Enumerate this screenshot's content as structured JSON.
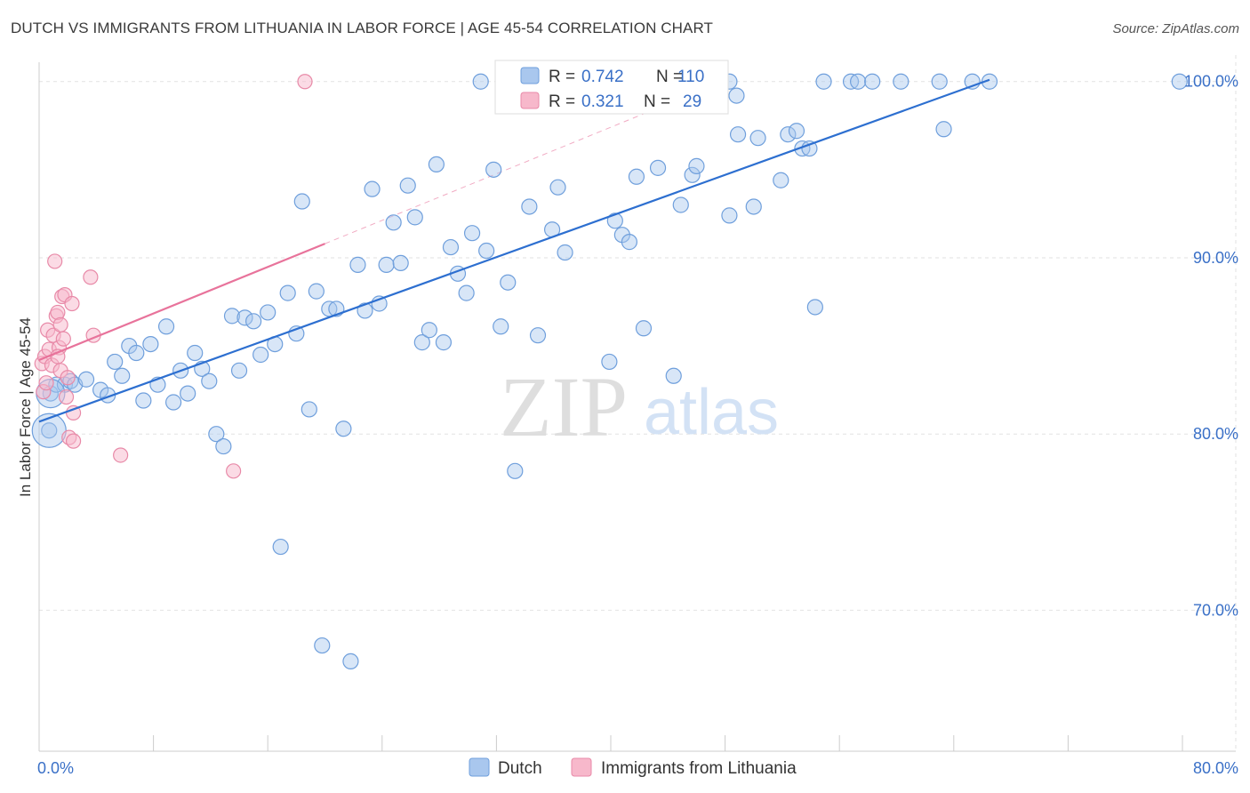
{
  "title": "DUTCH VS IMMIGRANTS FROM LITHUANIA IN LABOR FORCE | AGE 45-54 CORRELATION CHART",
  "source": "Source: ZipAtlas.com",
  "watermark": {
    "zip": "ZIP",
    "atlas": "atlas"
  },
  "colors": {
    "dutch_fill": "#a9c7ee",
    "dutch_stroke": "#6f9fdc",
    "dutch_line": "#2d6fd0",
    "lith_fill": "#f7b8cb",
    "lith_stroke": "#e88aa8",
    "lith_line": "#e8739b",
    "tick_text": "#3a70c7",
    "grid": "#e2e2e2"
  },
  "chart_data": {
    "type": "scatter",
    "title": "DUTCH VS IMMIGRANTS FROM LITHUANIA IN LABOR FORCE | AGE 45-54 CORRELATION CHART",
    "xlabel": "",
    "ylabel": "In Labor Force | Age 45-54",
    "xlim": [
      0,
      80
    ],
    "ylim": [
      62,
      101.5
    ],
    "x_tick_labels": [
      "0.0%",
      "80.0%"
    ],
    "y_ticks": [
      70,
      80,
      90,
      100
    ],
    "y_tick_labels": [
      "70.0%",
      "80.0%",
      "90.0%",
      "100.0%"
    ],
    "legend": {
      "position": "top-center",
      "rows": [
        {
          "r_label": "R =",
          "r_value": "0.742",
          "n_label": "N =",
          "n_value": "110"
        },
        {
          "r_label": "R =",
          "r_value": "0.321",
          "n_label": "N =",
          "n_value": "29"
        }
      ]
    },
    "series": [
      {
        "name": "Dutch",
        "trend": {
          "x": [
            0,
            66.5
          ],
          "y": [
            80.7,
            100.1
          ]
        },
        "points": [
          [
            0.7,
            80.2
          ],
          [
            0.8,
            82.3
          ],
          [
            1.2,
            82.8
          ],
          [
            1.8,
            82.8
          ],
          [
            2.2,
            83.0
          ],
          [
            2.5,
            82.8
          ],
          [
            3.3,
            83.1
          ],
          [
            4.3,
            82.5
          ],
          [
            4.8,
            82.2
          ],
          [
            5.3,
            84.1
          ],
          [
            5.8,
            83.3
          ],
          [
            6.3,
            85.0
          ],
          [
            6.8,
            84.6
          ],
          [
            7.3,
            81.9
          ],
          [
            7.8,
            85.1
          ],
          [
            8.3,
            82.8
          ],
          [
            8.9,
            86.1
          ],
          [
            9.4,
            81.8
          ],
          [
            9.9,
            83.6
          ],
          [
            10.4,
            82.3
          ],
          [
            10.9,
            84.6
          ],
          [
            11.4,
            83.7
          ],
          [
            11.9,
            83.0
          ],
          [
            12.4,
            80.0
          ],
          [
            12.9,
            79.3
          ],
          [
            13.5,
            86.7
          ],
          [
            14.0,
            83.6
          ],
          [
            14.4,
            86.6
          ],
          [
            15.0,
            86.4
          ],
          [
            15.5,
            84.5
          ],
          [
            16.0,
            86.9
          ],
          [
            16.5,
            85.1
          ],
          [
            16.9,
            73.6
          ],
          [
            17.4,
            88.0
          ],
          [
            18.0,
            85.7
          ],
          [
            18.4,
            93.2
          ],
          [
            18.9,
            81.4
          ],
          [
            19.4,
            88.1
          ],
          [
            19.8,
            68.0
          ],
          [
            20.3,
            87.1
          ],
          [
            20.8,
            87.1
          ],
          [
            21.3,
            80.3
          ],
          [
            21.8,
            67.1
          ],
          [
            22.3,
            89.6
          ],
          [
            22.8,
            87.0
          ],
          [
            23.3,
            93.9
          ],
          [
            23.8,
            87.4
          ],
          [
            24.3,
            89.6
          ],
          [
            24.8,
            92.0
          ],
          [
            25.3,
            89.7
          ],
          [
            25.8,
            94.1
          ],
          [
            26.3,
            92.3
          ],
          [
            26.8,
            85.2
          ],
          [
            27.3,
            85.9
          ],
          [
            27.8,
            95.3
          ],
          [
            28.3,
            85.2
          ],
          [
            28.8,
            90.6
          ],
          [
            29.3,
            89.1
          ],
          [
            29.9,
            88.0
          ],
          [
            30.3,
            91.4
          ],
          [
            30.9,
            100.0
          ],
          [
            31.3,
            90.4
          ],
          [
            31.8,
            95.0
          ],
          [
            32.3,
            86.1
          ],
          [
            32.8,
            88.6
          ],
          [
            33.3,
            77.9
          ],
          [
            34.3,
            92.9
          ],
          [
            34.9,
            85.6
          ],
          [
            35.3,
            100.0
          ],
          [
            35.9,
            91.6
          ],
          [
            36.3,
            94.0
          ],
          [
            36.8,
            90.3
          ],
          [
            37.4,
            100.0
          ],
          [
            38.3,
            100.0
          ],
          [
            39.3,
            100.0
          ],
          [
            39.9,
            84.1
          ],
          [
            40.3,
            92.1
          ],
          [
            40.8,
            91.3
          ],
          [
            41.3,
            90.9
          ],
          [
            41.8,
            94.6
          ],
          [
            42.3,
            86.0
          ],
          [
            43.3,
            95.1
          ],
          [
            44.4,
            83.3
          ],
          [
            44.9,
            93.0
          ],
          [
            45.7,
            94.7
          ],
          [
            46.0,
            95.2
          ],
          [
            46.6,
            99.2
          ],
          [
            48.3,
            100.0
          ],
          [
            48.8,
            99.2
          ],
          [
            48.3,
            92.4
          ],
          [
            48.9,
            97.0
          ],
          [
            50.0,
            92.9
          ],
          [
            50.3,
            96.8
          ],
          [
            51.9,
            94.4
          ],
          [
            52.4,
            97.0
          ],
          [
            53.0,
            97.2
          ],
          [
            53.4,
            96.2
          ],
          [
            53.9,
            96.2
          ],
          [
            54.3,
            87.2
          ],
          [
            54.9,
            100.0
          ],
          [
            56.8,
            100.0
          ],
          [
            57.3,
            100.0
          ],
          [
            58.3,
            100.0
          ],
          [
            60.3,
            100.0
          ],
          [
            63.0,
            100.0
          ],
          [
            63.3,
            97.3
          ],
          [
            65.3,
            100.0
          ],
          [
            66.5,
            100.0
          ],
          [
            79.8,
            100.0
          ]
        ]
      },
      {
        "name": "Immigrants from Lithuania",
        "trend": {
          "x": [
            0,
            20
          ],
          "y": [
            84.2,
            90.8
          ],
          "extension": {
            "x": [
              20,
              43
            ],
            "y": [
              90.8,
              98.4
            ]
          }
        },
        "points": [
          [
            0.2,
            84.0
          ],
          [
            0.3,
            82.4
          ],
          [
            0.4,
            84.4
          ],
          [
            0.6,
            85.9
          ],
          [
            0.7,
            84.8
          ],
          [
            0.9,
            83.9
          ],
          [
            1.0,
            85.6
          ],
          [
            1.1,
            89.8
          ],
          [
            1.2,
            86.7
          ],
          [
            1.3,
            86.9
          ],
          [
            1.4,
            84.9
          ],
          [
            1.5,
            86.2
          ],
          [
            1.5,
            83.6
          ],
          [
            1.6,
            87.8
          ],
          [
            1.7,
            85.4
          ],
          [
            1.8,
            87.9
          ],
          [
            1.9,
            82.1
          ],
          [
            2.0,
            83.2
          ],
          [
            2.1,
            79.8
          ],
          [
            2.3,
            87.4
          ],
          [
            2.4,
            79.6
          ],
          [
            2.4,
            81.2
          ],
          [
            3.6,
            88.9
          ],
          [
            3.8,
            85.6
          ],
          [
            5.7,
            78.8
          ],
          [
            13.6,
            77.9
          ],
          [
            18.6,
            100.0
          ],
          [
            0.5,
            82.9
          ],
          [
            1.3,
            84.4
          ]
        ]
      }
    ]
  },
  "bottom_legend": {
    "dutch": "Dutch",
    "lithuania": "Immigrants from Lithuania"
  }
}
